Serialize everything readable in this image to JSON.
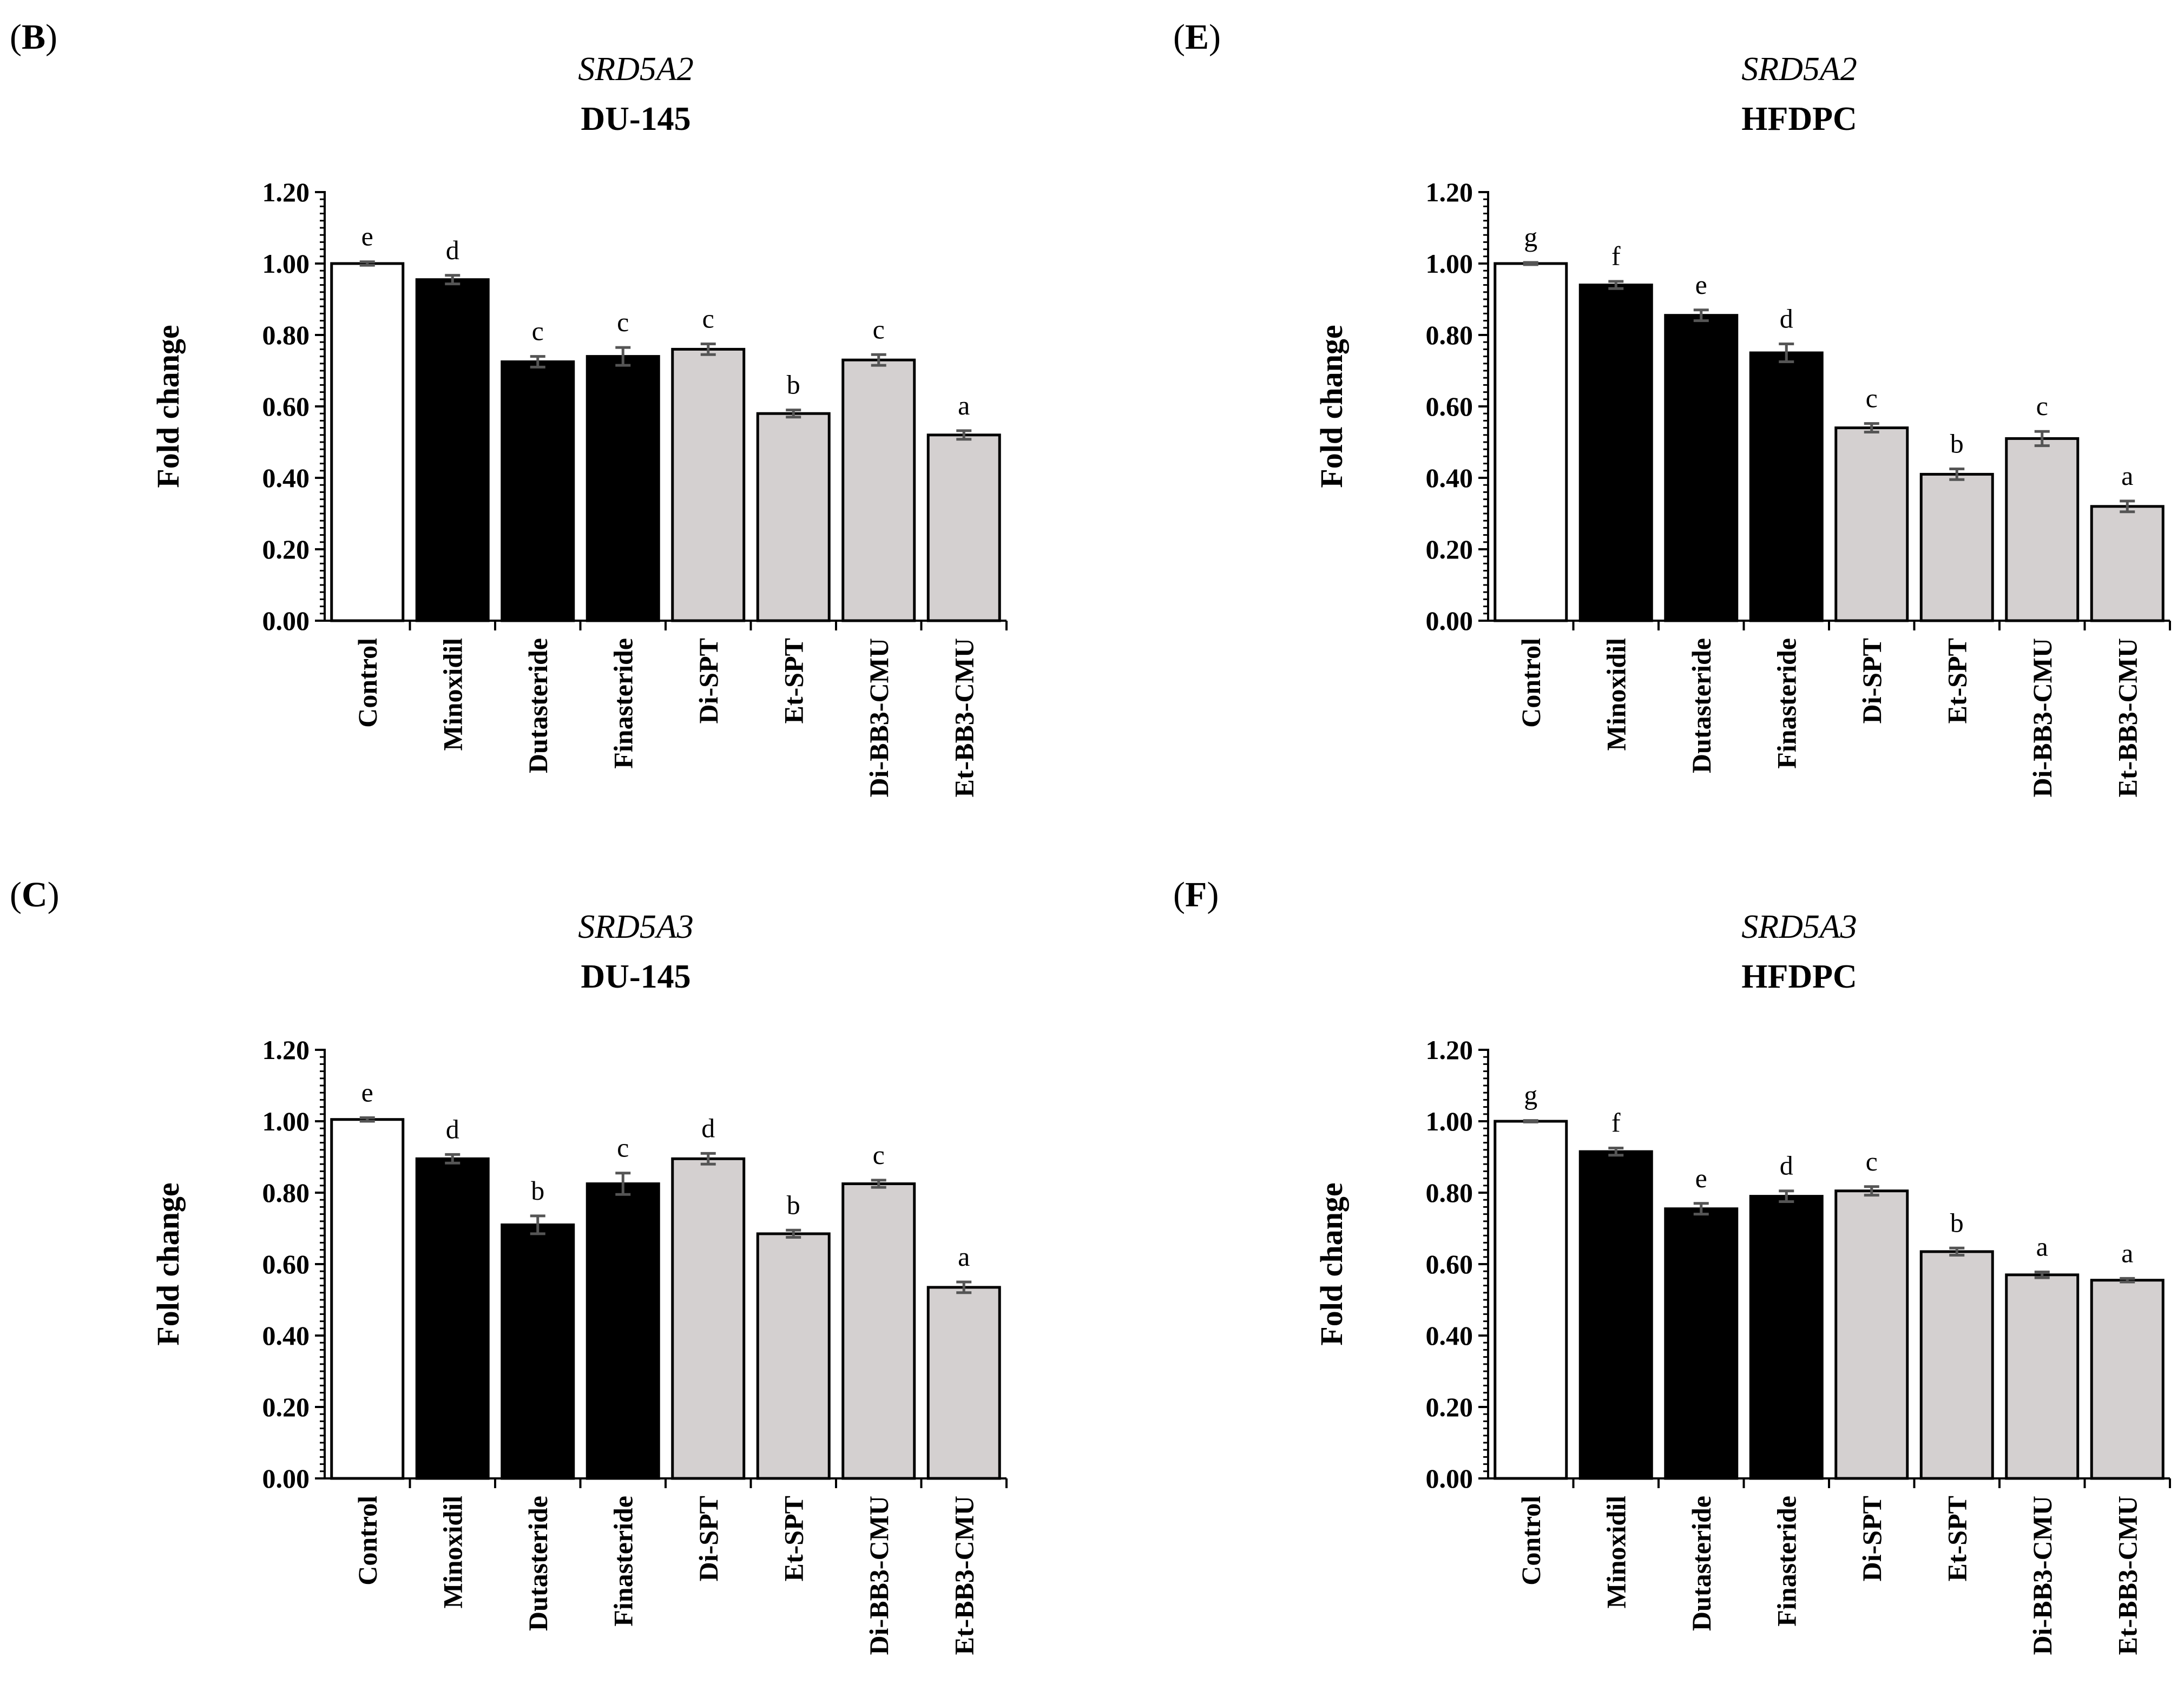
{
  "chart_data": [
    {
      "type": "bar",
      "panel_label": "B",
      "title": "SRD5A2",
      "subtitle": "DU-145",
      "xlabel": "",
      "ylabel": "Fold change",
      "ylim": [
        0,
        1.2
      ],
      "yticks": [
        "0.00",
        "0.20",
        "0.40",
        "0.60",
        "0.80",
        "1.00",
        "1.20"
      ],
      "categories": [
        "Control",
        "Minoxidil",
        "Dutasteride",
        "Finasteride",
        "Di-SPT",
        "Et-SPT",
        "Di-BB3-CMU",
        "Et-BB3-CMU"
      ],
      "values": [
        1.0,
        0.955,
        0.725,
        0.74,
        0.76,
        0.58,
        0.73,
        0.52
      ],
      "errors": [
        0.005,
        0.012,
        0.015,
        0.025,
        0.015,
        0.01,
        0.015,
        0.012
      ],
      "letters": [
        "e",
        "d",
        "c",
        "c",
        "c",
        "b",
        "c",
        "a"
      ],
      "bar_colors": [
        "#ffffff",
        "#000000",
        "#000000",
        "#000000",
        "#d4d0d0",
        "#d4d0d0",
        "#d4d0d0",
        "#d4d0d0"
      ]
    },
    {
      "type": "bar",
      "panel_label": "E",
      "title": "SRD5A2",
      "subtitle": "HFDPC",
      "xlabel": "",
      "ylabel": "Fold change",
      "ylim": [
        0,
        1.2
      ],
      "yticks": [
        "0.00",
        "0.20",
        "0.40",
        "0.60",
        "0.80",
        "1.00",
        "1.20"
      ],
      "categories": [
        "Control",
        "Minoxidil",
        "Dutasteride",
        "Finasteride",
        "Di-SPT",
        "Et-SPT",
        "Di-BB3-CMU",
        "Et-BB3-CMU"
      ],
      "values": [
        1.0,
        0.94,
        0.855,
        0.75,
        0.54,
        0.41,
        0.51,
        0.32
      ],
      "errors": [
        0.003,
        0.01,
        0.015,
        0.025,
        0.012,
        0.015,
        0.02,
        0.015
      ],
      "letters": [
        "g",
        "f",
        "e",
        "d",
        "c",
        "b",
        "c",
        "a"
      ],
      "bar_colors": [
        "#ffffff",
        "#000000",
        "#000000",
        "#000000",
        "#d4d0d0",
        "#d4d0d0",
        "#d4d0d0",
        "#d4d0d0"
      ]
    },
    {
      "type": "bar",
      "panel_label": "C",
      "title": "SRD5A3",
      "subtitle": "DU-145",
      "xlabel": "",
      "ylabel": "Fold change",
      "ylim": [
        0,
        1.2
      ],
      "yticks": [
        "0.00",
        "0.20",
        "0.40",
        "0.60",
        "0.80",
        "1.00",
        "1.20"
      ],
      "categories": [
        "Control",
        "Minoxidil",
        "Dutasteride",
        "Finasteride",
        "Di-SPT",
        "Et-SPT",
        "Di-BB3-CMU",
        "Et-BB3-CMU"
      ],
      "values": [
        1.005,
        0.895,
        0.71,
        0.825,
        0.895,
        0.685,
        0.825,
        0.535
      ],
      "errors": [
        0.005,
        0.012,
        0.025,
        0.03,
        0.015,
        0.01,
        0.01,
        0.015
      ],
      "letters": [
        "e",
        "d",
        "b",
        "c",
        "d",
        "b",
        "c",
        "a"
      ],
      "bar_colors": [
        "#ffffff",
        "#000000",
        "#000000",
        "#000000",
        "#d4d0d0",
        "#d4d0d0",
        "#d4d0d0",
        "#d4d0d0"
      ]
    },
    {
      "type": "bar",
      "panel_label": "F",
      "title": "SRD5A3",
      "subtitle": "HFDPC",
      "xlabel": "",
      "ylabel": "Fold change",
      "ylim": [
        0,
        1.2
      ],
      "yticks": [
        "0.00",
        "0.20",
        "0.40",
        "0.60",
        "0.80",
        "1.00",
        "1.20"
      ],
      "categories": [
        "Control",
        "Minoxidil",
        "Dutasteride",
        "Finasteride",
        "Di-SPT",
        "Et-SPT",
        "Di-BB3-CMU",
        "Et-BB3-CMU"
      ],
      "values": [
        1.0,
        0.915,
        0.755,
        0.79,
        0.805,
        0.635,
        0.57,
        0.555
      ],
      "errors": [
        0.002,
        0.01,
        0.015,
        0.015,
        0.012,
        0.01,
        0.008,
        0.005
      ],
      "letters": [
        "g",
        "f",
        "e",
        "d",
        "c",
        "b",
        "a",
        "a"
      ],
      "bar_colors": [
        "#ffffff",
        "#000000",
        "#000000",
        "#000000",
        "#d4d0d0",
        "#d4d0d0",
        "#d4d0d0",
        "#d4d0d0"
      ]
    }
  ]
}
